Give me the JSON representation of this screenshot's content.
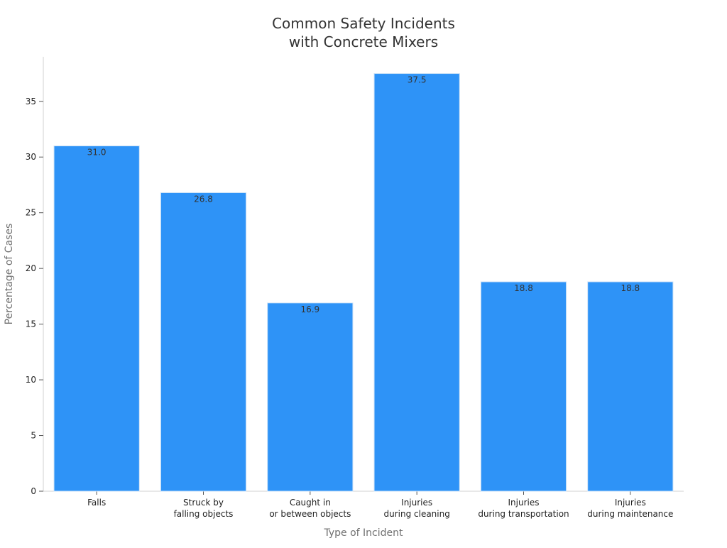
{
  "chart_data": {
    "type": "bar",
    "title_lines": [
      "Common Safety Incidents",
      "with Concrete Mixers"
    ],
    "xlabel": "Type of Incident",
    "ylabel": "Percentage of Cases",
    "categories": [
      [
        "Falls"
      ],
      [
        "Struck by",
        "falling objects"
      ],
      [
        "Caught in",
        "or between objects"
      ],
      [
        "Injuries",
        "during cleaning"
      ],
      [
        "Injuries",
        "during transportation"
      ],
      [
        "Injuries",
        "during maintenance"
      ]
    ],
    "values": [
      31.0,
      26.8,
      16.9,
      37.5,
      18.8,
      18.8
    ],
    "value_labels": [
      "31.0",
      "26.8",
      "16.9",
      "37.5",
      "18.8",
      "18.8"
    ],
    "ylim": [
      0,
      39
    ],
    "yticks": [
      0,
      5,
      10,
      15,
      20,
      25,
      30,
      35
    ],
    "bar_color": "#2e93f7",
    "grid": false,
    "legend": "none"
  }
}
